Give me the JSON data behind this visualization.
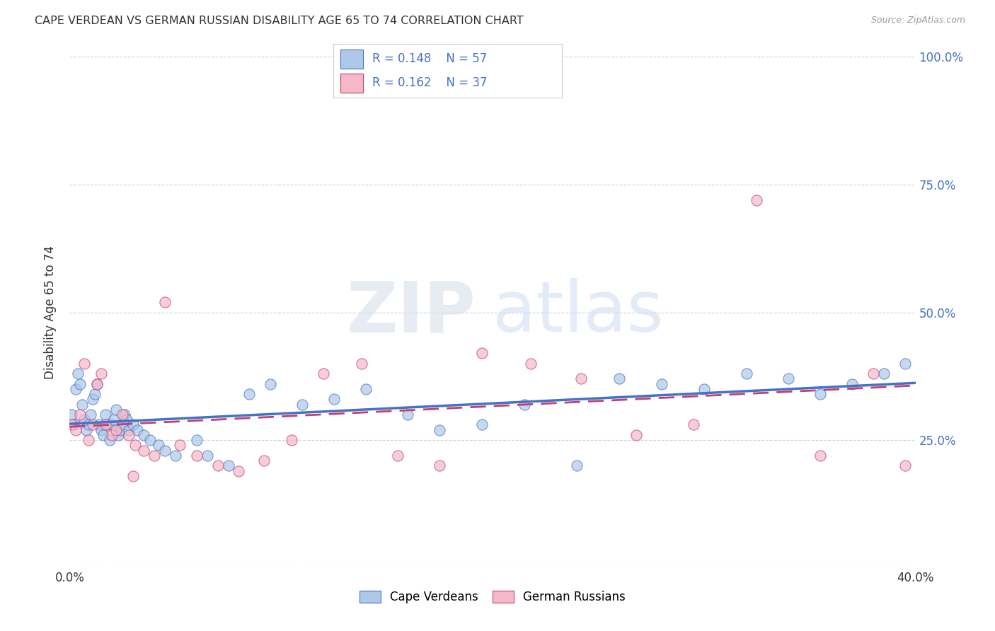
{
  "title": "CAPE VERDEAN VS GERMAN RUSSIAN DISABILITY AGE 65 TO 74 CORRELATION CHART",
  "source": "Source: ZipAtlas.com",
  "ylabel": "Disability Age 65 to 74",
  "xlim": [
    0.0,
    0.4
  ],
  "ylim": [
    0.0,
    1.0
  ],
  "yticks": [
    0.0,
    0.25,
    0.5,
    0.75,
    1.0
  ],
  "ytick_labels_right": [
    "",
    "25.0%",
    "50.0%",
    "75.0%",
    "100.0%"
  ],
  "xticks": [
    0.0,
    0.1,
    0.2,
    0.3,
    0.4
  ],
  "xtick_labels": [
    "0.0%",
    "",
    "",
    "",
    "40.0%"
  ],
  "legend_labels": [
    "Cape Verdeans",
    "German Russians"
  ],
  "r_cape_verdean": 0.148,
  "n_cape_verdean": 57,
  "r_german_russian": 0.162,
  "n_german_russian": 37,
  "color_cape_verdean": "#adc8e8",
  "color_german_russian": "#f5b8c8",
  "line_color_cape_verdean": "#4472c4",
  "line_color_german_russian": "#c04070",
  "watermark_zip": "ZIP",
  "watermark_atlas": "atlas",
  "background_color": "#ffffff",
  "grid_color": "#c8d4e8",
  "cape_verdean_x": [
    0.001,
    0.002,
    0.003,
    0.004,
    0.005,
    0.006,
    0.007,
    0.008,
    0.009,
    0.01,
    0.011,
    0.012,
    0.013,
    0.014,
    0.015,
    0.016,
    0.017,
    0.018,
    0.019,
    0.02,
    0.021,
    0.022,
    0.023,
    0.024,
    0.025,
    0.026,
    0.027,
    0.028,
    0.03,
    0.032,
    0.035,
    0.038,
    0.042,
    0.045,
    0.05,
    0.06,
    0.065,
    0.075,
    0.085,
    0.095,
    0.11,
    0.125,
    0.14,
    0.16,
    0.175,
    0.195,
    0.215,
    0.24,
    0.26,
    0.28,
    0.3,
    0.32,
    0.34,
    0.355,
    0.37,
    0.385,
    0.395
  ],
  "cape_verdean_y": [
    0.3,
    0.28,
    0.35,
    0.38,
    0.36,
    0.32,
    0.29,
    0.27,
    0.28,
    0.3,
    0.33,
    0.34,
    0.36,
    0.28,
    0.27,
    0.26,
    0.3,
    0.28,
    0.25,
    0.28,
    0.29,
    0.31,
    0.26,
    0.27,
    0.28,
    0.3,
    0.29,
    0.27,
    0.28,
    0.27,
    0.26,
    0.25,
    0.24,
    0.23,
    0.22,
    0.25,
    0.22,
    0.2,
    0.34,
    0.36,
    0.32,
    0.33,
    0.35,
    0.3,
    0.27,
    0.28,
    0.32,
    0.2,
    0.37,
    0.36,
    0.35,
    0.38,
    0.37,
    0.34,
    0.36,
    0.38,
    0.4
  ],
  "german_russian_x": [
    0.001,
    0.003,
    0.005,
    0.007,
    0.009,
    0.011,
    0.013,
    0.015,
    0.017,
    0.02,
    0.022,
    0.025,
    0.028,
    0.031,
    0.035,
    0.04,
    0.045,
    0.052,
    0.06,
    0.07,
    0.08,
    0.092,
    0.105,
    0.12,
    0.138,
    0.155,
    0.175,
    0.195,
    0.218,
    0.242,
    0.268,
    0.295,
    0.325,
    0.355,
    0.38,
    0.395,
    0.03
  ],
  "german_russian_y": [
    0.28,
    0.27,
    0.3,
    0.4,
    0.25,
    0.28,
    0.36,
    0.38,
    0.28,
    0.26,
    0.27,
    0.3,
    0.26,
    0.24,
    0.23,
    0.22,
    0.52,
    0.24,
    0.22,
    0.2,
    0.19,
    0.21,
    0.25,
    0.38,
    0.4,
    0.22,
    0.2,
    0.42,
    0.4,
    0.37,
    0.26,
    0.28,
    0.72,
    0.22,
    0.38,
    0.2,
    0.18
  ]
}
